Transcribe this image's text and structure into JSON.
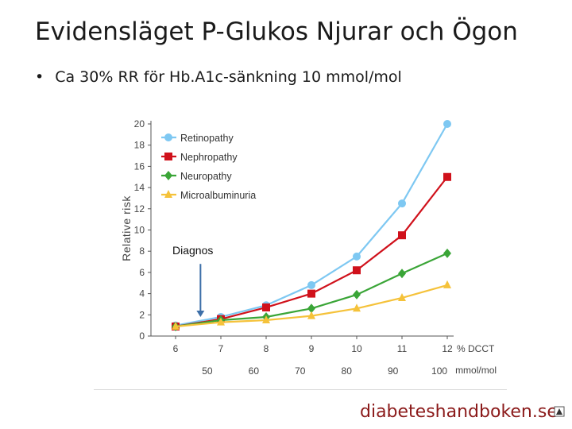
{
  "slide": {
    "title": "Evidensläget P-Glukos Njurar och Ögon",
    "bullet_marker": "•",
    "bullet": "Ca 30% RR för Hb.A1c-sänkning 10 mmol/mol"
  },
  "chart_data": {
    "type": "line",
    "ylabel": "Relative risk",
    "xlabel_top": "% DCCT",
    "xlabel_bottom": "mmol/mol",
    "x": [
      6,
      7,
      8,
      9,
      10,
      11,
      12
    ],
    "x_tick_labels": [
      "6",
      "7",
      "8",
      "9",
      "10",
      "11",
      "12"
    ],
    "x_secondary": [
      50,
      60,
      70,
      80,
      90,
      100
    ],
    "ylim": [
      0,
      20
    ],
    "y_ticks": [
      0,
      2,
      4,
      6,
      8,
      10,
      12,
      14,
      16,
      18,
      20
    ],
    "grid": false,
    "legend_position": "top-left",
    "series": [
      {
        "name": "Retinopathy",
        "color": "#7ec8f2",
        "marker": "circle",
        "values": [
          1,
          1.8,
          2.9,
          4.8,
          7.5,
          12.5,
          20
        ]
      },
      {
        "name": "Nephropathy",
        "color": "#d0111b",
        "marker": "square",
        "values": [
          0.9,
          1.6,
          2.7,
          4.0,
          6.2,
          9.5,
          15
        ]
      },
      {
        "name": "Neuropathy",
        "color": "#3aa537",
        "marker": "diamond",
        "values": [
          0.9,
          1.5,
          1.8,
          2.6,
          3.9,
          5.9,
          7.8
        ]
      },
      {
        "name": "Microalbuminuria",
        "color": "#f5c23a",
        "marker": "triangle",
        "values": [
          0.9,
          1.3,
          1.5,
          1.9,
          2.6,
          3.6,
          4.8
        ]
      }
    ],
    "annotation": {
      "text": "Diagnos",
      "x": 6.55,
      "y_from": 6.8,
      "y_to": 1.8,
      "color": "#3d6fa8"
    }
  },
  "footer": {
    "brand": "diabeteshandboken.se"
  }
}
